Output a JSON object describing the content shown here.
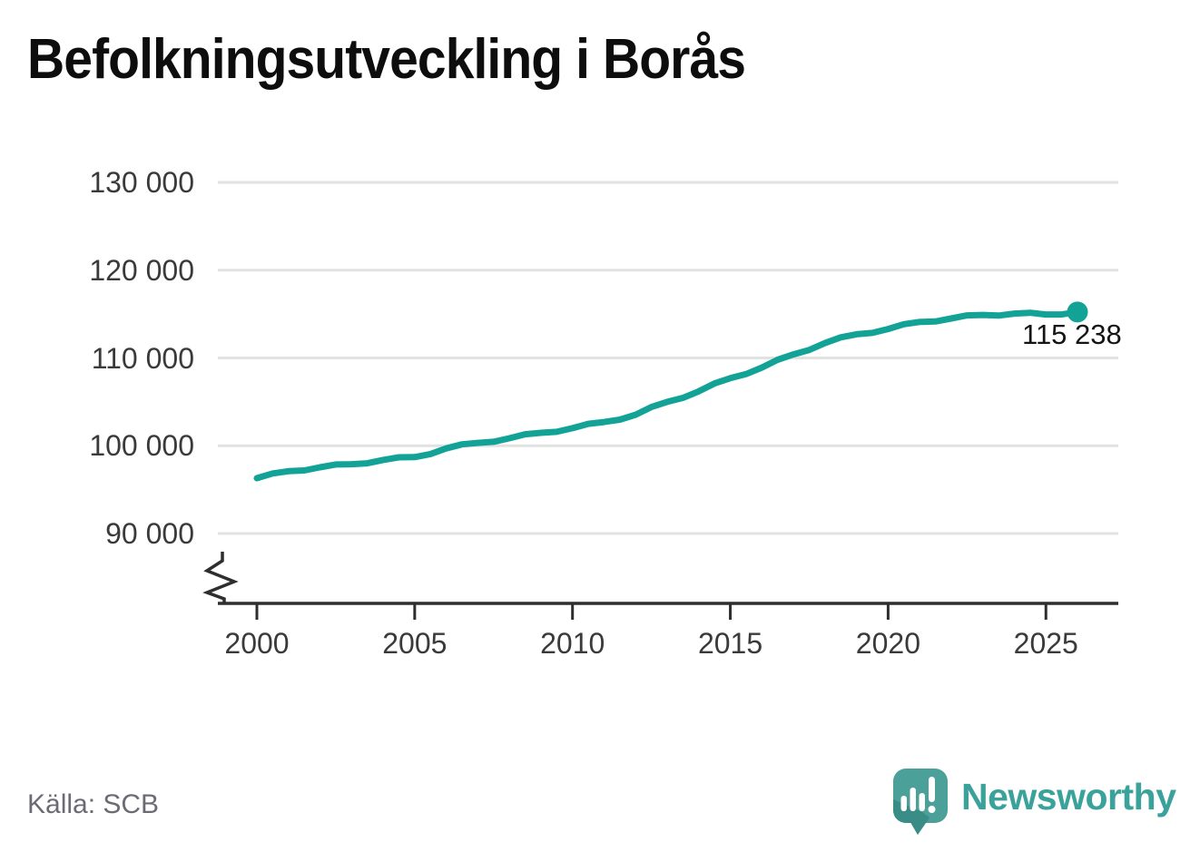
{
  "title": "Befolkningsutveckling i Borås",
  "source": "Källa: SCB",
  "branding": {
    "name": "Newsworthy",
    "icon": "speech-bubble-bar-chart-icon"
  },
  "annotation": {
    "last_value_label": "115 238"
  },
  "colors": {
    "line": "#13a296",
    "grid": "#e2e2e2",
    "axis": "#2e2e2e",
    "tick_text": "#3a3a3a",
    "title_text": "#0d0d0d",
    "annotation_text": "#141414",
    "source_text": "#6b6b74",
    "brand_teal": "#4ba19a",
    "brand_teal_dark": "#3a8d87",
    "brand_text": "#3aa29b"
  },
  "chart_data": {
    "type": "line",
    "title": "Befolkningsutveckling i Borås",
    "x": [
      2000,
      2001,
      2002,
      2003,
      2004,
      2005,
      2006,
      2007,
      2008,
      2009,
      2010,
      2011,
      2012,
      2013,
      2014,
      2015,
      2016,
      2017,
      2018,
      2019,
      2020,
      2021,
      2022,
      2023,
      2024,
      2025,
      2026
    ],
    "series": [
      {
        "name": "Befolkning i Borås",
        "values": [
          96300,
          97100,
          97550,
          97900,
          98380,
          98700,
          99700,
          100330,
          100850,
          101470,
          102000,
          102700,
          103530,
          105000,
          106200,
          107700,
          108900,
          110400,
          111700,
          112700,
          113300,
          114100,
          114500,
          114900,
          115050,
          114950,
          115238
        ]
      }
    ],
    "xticks": [
      2000,
      2005,
      2010,
      2015,
      2020,
      2025
    ],
    "ytick_values": [
      130000,
      120000,
      110000,
      100000,
      90000
    ],
    "ytick_labels": [
      "130 000",
      "120 000",
      "110 000",
      "100 000",
      "90 000"
    ],
    "ylim_display": [
      90000,
      130000
    ],
    "axis_break": true,
    "grid": "horizontal",
    "legend": "none",
    "last_point": {
      "x": 2026,
      "y": 115238,
      "label": "115 238"
    },
    "source": "Källa: SCB"
  }
}
